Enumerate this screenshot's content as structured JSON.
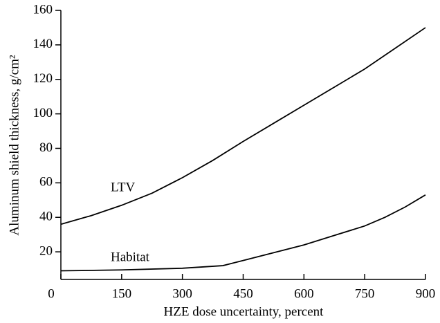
{
  "chart_data": {
    "type": "line",
    "xlabel": "HZE dose uncertainty, percent",
    "ylabel": "Aluminum shield thickness, g/cm²",
    "series": [
      {
        "name": "LTV",
        "color": "#000000",
        "x": [
          0,
          75,
          150,
          225,
          300,
          375,
          450,
          525,
          600,
          675,
          750,
          825,
          900
        ],
        "values": [
          36,
          41,
          47,
          54,
          63,
          73,
          84,
          94.5,
          105,
          115.5,
          126,
          138,
          150
        ]
      },
      {
        "name": "Habitat",
        "color": "#000000",
        "x": [
          0,
          150,
          300,
          400,
          450,
          525,
          600,
          675,
          750,
          800,
          850,
          900
        ],
        "values": [
          9,
          9.5,
          10.5,
          12,
          15,
          19.5,
          24,
          29.5,
          35,
          40,
          46,
          53
        ]
      }
    ],
    "xlim": [
      0,
      900
    ],
    "xticks": [
      0,
      150,
      300,
      450,
      600,
      750,
      900
    ],
    "ylim": [
      4,
      160
    ],
    "yticks": [
      20,
      40,
      60,
      80,
      100,
      120,
      140,
      160
    ]
  }
}
